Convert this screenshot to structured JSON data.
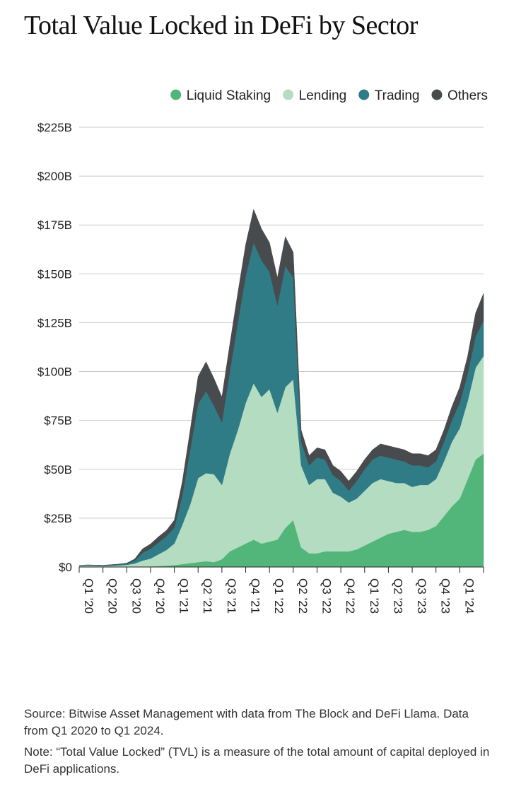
{
  "page": {
    "title": "Total Value Locked in DeFi by Sector"
  },
  "footer": {
    "source": "Source: Bitwise Asset Management with data from The Block and DeFi Llama. Data from Q1 2020 to Q1 2024.",
    "note": "Note: “Total Value Locked” (TVL) is a measure of the total amount of capital deployed in DeFi applications."
  },
  "chart_data": {
    "type": "area",
    "stacked": true,
    "title": "Total Value Locked in DeFi by Sector",
    "xlabel": "",
    "ylabel": "",
    "ylim": [
      0,
      225
    ],
    "y_unit": "$B",
    "y_ticks": [
      0,
      25,
      50,
      75,
      100,
      125,
      150,
      175,
      200,
      225
    ],
    "y_tick_labels": [
      "$0",
      "$25B",
      "$50B",
      "$75B",
      "$100B",
      "$125B",
      "$150B",
      "$175B",
      "$200B",
      "$225B"
    ],
    "x_ticks": [
      0,
      3,
      6,
      9,
      12,
      15,
      18,
      21,
      24,
      27,
      30,
      33,
      36,
      39,
      42,
      45,
      48,
      51
    ],
    "x_tick_labels": [
      "Q1 ’20",
      "Q2 ’20",
      "Q3 ’20",
      "Q4 ’20",
      "Q1 ’21",
      "Q2 ’21",
      "Q3 ’21",
      "Q4 ’21",
      "Q1 ’22",
      "Q2 ’22",
      "Q3 ’22",
      "Q4 ’22",
      "Q1 ’23",
      "Q2 ’23",
      "Q3 ’23",
      "Q4 ’23",
      "Q1 ’24",
      ""
    ],
    "x_range": [
      0,
      51
    ],
    "grid": true,
    "legend_position": "top-right",
    "x": [
      "Jan 2020",
      "Feb 2020",
      "Mar 2020",
      "Apr 2020",
      "May 2020",
      "Jun 2020",
      "Jul 2020",
      "Aug 2020",
      "Sep 2020",
      "Oct 2020",
      "Nov 2020",
      "Dec 2020",
      "Jan 2021",
      "Feb 2021",
      "Mar 2021",
      "Apr 2021",
      "May 2021",
      "Jun 2021",
      "Jul 2021",
      "Aug 2021",
      "Sep 2021",
      "Oct 2021",
      "Nov 2021",
      "Dec 2021",
      "Jan 2022",
      "Feb 2022",
      "Mar 2022",
      "Apr 2022",
      "May 2022",
      "Jun 2022",
      "Jul 2022",
      "Aug 2022",
      "Sep 2022",
      "Oct 2022",
      "Nov 2022",
      "Dec 2022",
      "Jan 2023",
      "Feb 2023",
      "Mar 2023",
      "Apr 2023",
      "May 2023",
      "Jun 2023",
      "Jul 2023",
      "Aug 2023",
      "Sep 2023",
      "Oct 2023",
      "Nov 2023",
      "Dec 2023",
      "Jan 2024",
      "Feb 2024",
      "Mar 2024",
      "Apr 2024"
    ],
    "series": [
      {
        "name": "Liquid Staking",
        "color": "#52b67a",
        "values": [
          0,
          0,
          0,
          0,
          0,
          0,
          0.1,
          0.3,
          0.3,
          0.3,
          0.5,
          0.7,
          1,
          1.5,
          2,
          2.5,
          3,
          2.5,
          4,
          8,
          10,
          12,
          14,
          12,
          13,
          14,
          20,
          24,
          10,
          7,
          7,
          8,
          8,
          8,
          8,
          9,
          11,
          13,
          15,
          17,
          18,
          19,
          18,
          18,
          19,
          21,
          26,
          31,
          35,
          45,
          55,
          58
        ]
      },
      {
        "name": "Lending",
        "color": "#b4dcc0",
        "values": [
          0.5,
          0.7,
          0.6,
          0.5,
          0.6,
          0.8,
          1,
          1.5,
          3,
          4,
          6,
          8,
          11,
          20,
          30,
          43,
          45,
          45,
          38,
          50,
          60,
          72,
          80,
          75,
          78,
          65,
          72,
          72,
          42,
          35,
          38,
          37,
          30,
          28,
          25,
          26,
          28,
          30,
          30,
          27,
          25,
          24,
          23,
          24,
          23,
          24,
          28,
          33,
          36,
          40,
          47,
          50
        ]
      },
      {
        "name": "Trading",
        "color": "#2f7c87",
        "values": [
          0.2,
          0.3,
          0.3,
          0.3,
          0.4,
          0.5,
          0.6,
          1.5,
          4,
          5,
          6,
          7,
          8,
          15,
          28,
          38,
          42,
          35,
          32,
          42,
          55,
          65,
          72,
          70,
          60,
          55,
          62,
          52,
          12,
          10,
          11,
          10,
          9,
          8,
          6,
          9,
          11,
          12,
          12,
          12,
          12,
          11,
          11,
          10,
          9,
          9,
          10,
          11,
          13,
          14,
          16,
          18
        ]
      },
      {
        "name": "Others",
        "color": "#474b4d",
        "values": [
          0.1,
          0.1,
          0.1,
          0.1,
          0.2,
          0.2,
          0.3,
          0.8,
          2,
          2.5,
          3,
          3,
          4,
          7,
          10,
          14,
          15,
          14,
          13,
          14,
          15,
          16,
          17,
          16,
          15,
          14,
          15,
          13,
          6,
          5,
          5,
          5,
          5,
          5,
          5,
          5,
          5,
          5,
          6,
          6,
          6,
          6,
          6,
          6,
          6,
          6,
          6,
          7,
          8,
          9,
          12,
          14
        ]
      }
    ]
  }
}
